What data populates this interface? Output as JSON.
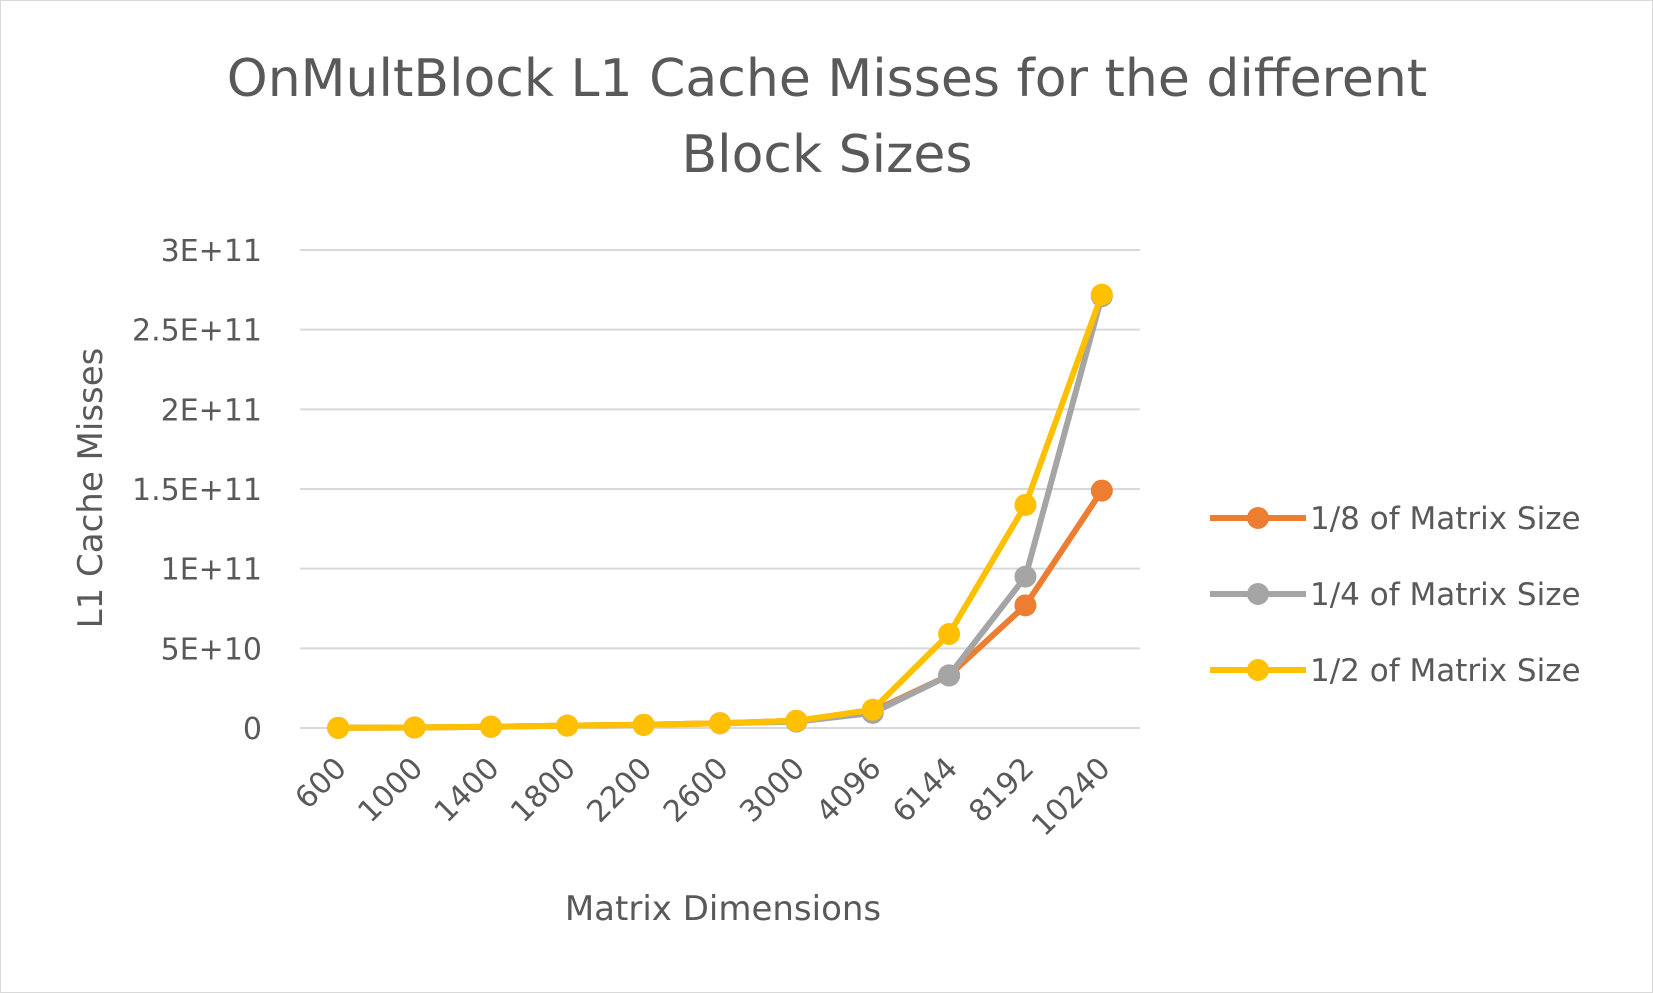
{
  "chart_data": {
    "type": "line",
    "title_line1": "OnMultBlock L1 Cache Misses for the different",
    "title_line2": "Block Sizes",
    "xlabel": "Matrix Dimensions",
    "ylabel": "L1 Cache Misses",
    "categories": [
      "600",
      "1000",
      "1400",
      "1800",
      "2200",
      "2600",
      "3000",
      "4096",
      "6144",
      "8192",
      "10240"
    ],
    "yticks": [
      "0",
      "5E+10",
      "1E+11",
      "1.5E+11",
      "2E+11",
      "2.5E+11",
      "3E+11"
    ],
    "ylim": [
      0,
      300000000000
    ],
    "grid": true,
    "legend_position": "right",
    "series": [
      {
        "name": "1/8 of Matrix Size",
        "color": "#ED7D31",
        "values": [
          100000000,
          300000000,
          800000000,
          1500000000,
          2000000000,
          3000000000,
          4500000000,
          10500000000,
          33000000000,
          77000000000,
          149000000000
        ]
      },
      {
        "name": "1/4 of Matrix Size",
        "color": "#A5A5A5",
        "values": [
          100000000,
          300000000,
          800000000,
          1500000000,
          2000000000,
          3000000000,
          4000000000,
          9500000000,
          33000000000,
          95000000000,
          271000000000
        ]
      },
      {
        "name": "1/2 of Matrix Size",
        "color": "#FFC000",
        "values": [
          100000000,
          300000000,
          800000000,
          1500000000,
          2000000000,
          3000000000,
          4500000000,
          11500000000,
          59000000000,
          140000000000,
          272000000000
        ]
      }
    ]
  }
}
